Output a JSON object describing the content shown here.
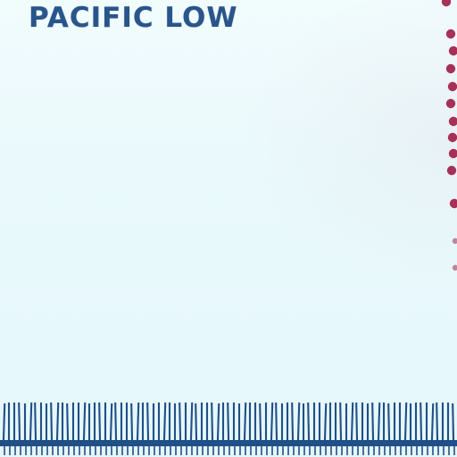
{
  "title": "PACIFIC LOW",
  "colors": {
    "background": "#e8f9fc",
    "title": "#214f87",
    "front_line": "#214f87",
    "dots": "#a2264f"
  }
}
